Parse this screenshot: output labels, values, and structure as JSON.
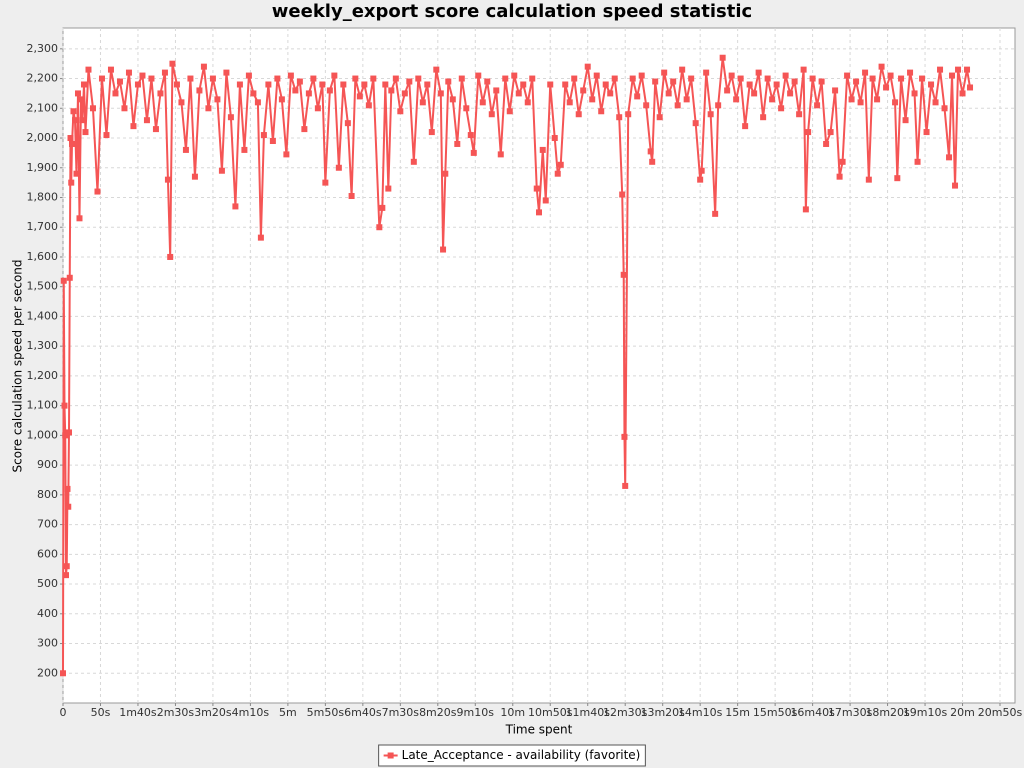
{
  "chart_data": {
    "type": "line",
    "title": "weekly_export score calculation speed statistic",
    "x_label": "Time spent",
    "y_label": "Score calculation speed per second",
    "xlim": [
      0,
      1270
    ],
    "ylim": [
      100,
      2370
    ],
    "grid": true,
    "legend": "bottom",
    "xticks": [
      0,
      {
        "value": 50,
        "label": "50s"
      },
      {
        "value": 100,
        "label": "1m40s"
      },
      {
        "value": 150,
        "label": "2m30s"
      },
      {
        "value": 200,
        "label": "3m20s"
      },
      {
        "value": 250,
        "label": "4m10s"
      },
      {
        "value": 300,
        "label": "5m"
      },
      {
        "value": 350,
        "label": "5m50s"
      },
      {
        "value": 400,
        "label": "6m40s"
      },
      {
        "value": 450,
        "label": "7m30s"
      },
      {
        "value": 500,
        "label": "8m20s"
      },
      {
        "value": 550,
        "label": "9m10s"
      },
      {
        "value": 600,
        "label": "10m"
      },
      {
        "value": 650,
        "label": "10m50s"
      },
      {
        "value": 700,
        "label": "11m40s"
      },
      {
        "value": 750,
        "label": "12m30s"
      },
      {
        "value": 800,
        "label": "13m20s"
      },
      {
        "value": 850,
        "label": "14m10s"
      },
      {
        "value": 900,
        "label": "15m"
      },
      {
        "value": 950,
        "label": "15m50s"
      },
      {
        "value": 1000,
        "label": "16m40s"
      },
      {
        "value": 1050,
        "label": "17m30s"
      },
      {
        "value": 1100,
        "label": "18m20s"
      },
      {
        "value": 1150,
        "label": "19m10s"
      },
      {
        "value": 1200,
        "label": "20m"
      },
      {
        "value": 1250,
        "label": "20m50s"
      }
    ],
    "yticks": [
      200,
      300,
      400,
      500,
      600,
      700,
      800,
      900,
      {
        "value": 1000,
        "label": "1,000"
      },
      {
        "value": 1100,
        "label": "1,100"
      },
      {
        "value": 1200,
        "label": "1,200"
      },
      {
        "value": 1300,
        "label": "1,300"
      },
      {
        "value": 1400,
        "label": "1,400"
      },
      {
        "value": 1500,
        "label": "1,500"
      },
      {
        "value": 1600,
        "label": "1,600"
      },
      {
        "value": 1700,
        "label": "1,700"
      },
      {
        "value": 1800,
        "label": "1,800"
      },
      {
        "value": 1900,
        "label": "1,900"
      },
      {
        "value": 2000,
        "label": "2,000"
      },
      {
        "value": 2100,
        "label": "2,100"
      },
      {
        "value": 2200,
        "label": "2,200"
      },
      {
        "value": 2300,
        "label": "2,300"
      }
    ],
    "x": [
      0,
      1,
      2,
      3,
      4,
      5,
      6,
      7,
      8,
      9,
      10,
      11,
      12,
      14,
      16,
      18,
      20,
      22,
      24,
      26,
      28,
      30,
      34,
      40,
      46,
      52,
      58,
      64,
      70,
      76,
      82,
      88,
      94,
      100,
      106,
      112,
      118,
      124,
      130,
      136,
      140,
      143,
      146,
      152,
      158,
      164,
      170,
      176,
      182,
      188,
      194,
      200,
      206,
      212,
      218,
      224,
      230,
      236,
      242,
      248,
      254,
      260,
      264,
      268,
      274,
      280,
      286,
      292,
      298,
      304,
      310,
      316,
      322,
      328,
      334,
      340,
      346,
      350,
      356,
      362,
      368,
      374,
      380,
      385,
      390,
      396,
      402,
      408,
      414,
      422,
      426,
      430,
      434,
      438,
      444,
      450,
      456,
      462,
      468,
      474,
      480,
      486,
      492,
      498,
      504,
      507,
      510,
      514,
      520,
      526,
      532,
      538,
      544,
      548,
      554,
      560,
      566,
      572,
      578,
      584,
      590,
      596,
      602,
      608,
      614,
      620,
      626,
      632,
      635,
      640,
      644,
      650,
      656,
      660,
      664,
      670,
      676,
      682,
      688,
      694,
      700,
      706,
      712,
      718,
      724,
      730,
      736,
      742,
      746,
      748,
      749,
      750,
      754,
      760,
      766,
      772,
      778,
      784,
      786,
      790,
      796,
      802,
      808,
      814,
      820,
      826,
      832,
      838,
      844,
      850,
      852,
      858,
      864,
      870,
      874,
      880,
      886,
      892,
      898,
      904,
      910,
      916,
      922,
      928,
      934,
      940,
      946,
      952,
      958,
      964,
      970,
      976,
      982,
      988,
      991,
      994,
      1000,
      1006,
      1012,
      1018,
      1024,
      1030,
      1036,
      1040,
      1046,
      1052,
      1058,
      1064,
      1070,
      1075,
      1080,
      1086,
      1092,
      1098,
      1104,
      1110,
      1113,
      1118,
      1124,
      1130,
      1136,
      1140,
      1146,
      1152,
      1158,
      1164,
      1170,
      1176,
      1182,
      1186,
      1190,
      1194,
      1200,
      1206,
      1210
    ],
    "series": [
      {
        "name": "Late_Acceptance - availability (favorite)",
        "color": "#f55555",
        "values": [
          200,
          1520,
          1100,
          1000,
          530,
          560,
          820,
          760,
          1010,
          1530,
          2000,
          1850,
          1980,
          2090,
          2060,
          1880,
          2150,
          1730,
          2130,
          2060,
          2180,
          2020,
          2230,
          2100,
          1820,
          2200,
          2010,
          2230,
          2150,
          2190,
          2100,
          2220,
          2040,
          2180,
          2210,
          2060,
          2200,
          2030,
          2150,
          2220,
          1860,
          1600,
          2250,
          2180,
          2120,
          1960,
          2200,
          1870,
          2160,
          2240,
          2100,
          2200,
          2130,
          1890,
          2220,
          2070,
          1770,
          2180,
          1960,
          2210,
          2150,
          2120,
          1665,
          2010,
          2180,
          1990,
          2200,
          2130,
          1945,
          2210,
          2160,
          2190,
          2030,
          2150,
          2200,
          2100,
          2180,
          1850,
          2160,
          2210,
          1900,
          2180,
          2050,
          1805,
          2200,
          2140,
          2180,
          2110,
          2200,
          1700,
          1765,
          2180,
          1830,
          2160,
          2200,
          2090,
          2150,
          2190,
          1920,
          2200,
          2120,
          2180,
          2020,
          2230,
          2150,
          1625,
          1880,
          2190,
          2130,
          1980,
          2200,
          2100,
          2010,
          1950,
          2210,
          2120,
          2190,
          2080,
          2160,
          1945,
          2200,
          2090,
          2210,
          2150,
          2180,
          2120,
          2200,
          1830,
          1750,
          1960,
          1790,
          2180,
          2000,
          1880,
          1910,
          2180,
          2120,
          2200,
          2080,
          2160,
          2240,
          2130,
          2210,
          2090,
          2180,
          2150,
          2200,
          2070,
          1810,
          1540,
          995,
          830,
          2080,
          2200,
          2140,
          2210,
          2110,
          1955,
          1920,
          2190,
          2070,
          2220,
          2150,
          2190,
          2110,
          2230,
          2130,
          2200,
          2050,
          1860,
          1890,
          2220,
          2080,
          1745,
          2110,
          2270,
          2160,
          2210,
          2130,
          2200,
          2040,
          2180,
          2150,
          2220,
          2070,
          2200,
          2130,
          2180,
          2100,
          2210,
          2150,
          2190,
          2080,
          2230,
          1760,
          2020,
          2200,
          2110,
          2190,
          1980,
          2020,
          2160,
          1870,
          1920,
          2210,
          2130,
          2190,
          2120,
          2220,
          1860,
          2200,
          2130,
          2240,
          2170,
          2210,
          2120,
          1865,
          2200,
          2060,
          2220,
          2150,
          1920,
          2200,
          2020,
          2180,
          2120,
          2230,
          2100,
          1935,
          2210,
          1840,
          2230,
          2150,
          2230,
          2170
        ]
      }
    ]
  }
}
